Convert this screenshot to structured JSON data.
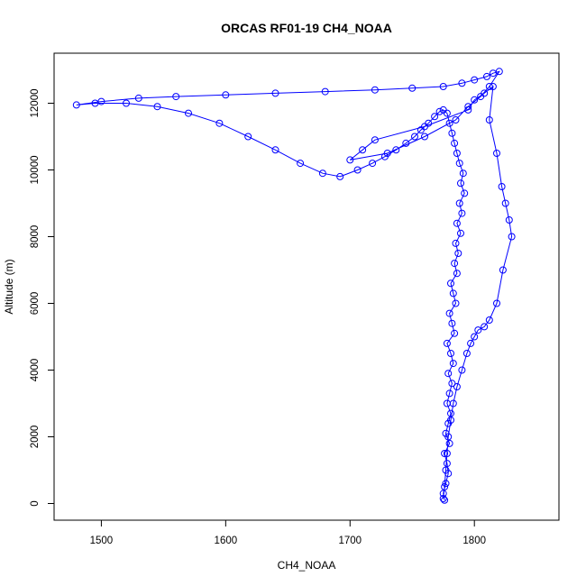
{
  "chart_data": {
    "type": "scatter",
    "title": "ORCAS RF01-19 CH4_NOAA",
    "xlabel": "CH4_NOAA",
    "ylabel": "Altitude (m)",
    "xlim": [
      1462,
      1868
    ],
    "ylim": [
      -500,
      13500
    ],
    "x_ticks": [
      1500,
      1600,
      1700,
      1800
    ],
    "y_ticks": [
      0,
      2000,
      4000,
      6000,
      8000,
      10000,
      12000
    ],
    "grid": false,
    "legend": "none",
    "marker": "open-circle",
    "connected": true,
    "color": "#0000ff",
    "series": [
      {
        "name": "",
        "x": [
          1776,
          1775,
          1777,
          1779,
          1778,
          1776,
          1780,
          1777,
          1779,
          1781,
          1778,
          1780,
          1782,
          1779,
          1783,
          1781,
          1778,
          1784,
          1782,
          1780,
          1785,
          1783,
          1781,
          1786,
          1784,
          1787,
          1785,
          1789,
          1786,
          1790,
          1788,
          1792,
          1789,
          1791,
          1788,
          1786,
          1784,
          1782,
          1780,
          1778,
          1775,
          1772,
          1768,
          1763,
          1757,
          1752,
          1745,
          1737,
          1728,
          1718,
          1706,
          1692,
          1678,
          1660,
          1640,
          1618,
          1595,
          1570,
          1545,
          1520,
          1495,
          1480,
          1500,
          1530,
          1560,
          1600,
          1640,
          1680,
          1720,
          1750,
          1775,
          1790,
          1800,
          1810,
          1815,
          1820,
          1812,
          1805,
          1795,
          1785,
          1760,
          1730,
          1700,
          1710,
          1720,
          1760,
          1795,
          1800,
          1808,
          1815,
          1812,
          1818,
          1822,
          1825,
          1828,
          1830,
          1823,
          1818,
          1812,
          1808,
          1803,
          1800,
          1797,
          1794,
          1790,
          1786,
          1783,
          1781,
          1779,
          1778,
          1777,
          1776,
          1775
        ],
        "y": [
          100,
          300,
          600,
          900,
          1200,
          1500,
          1800,
          2100,
          2400,
          2700,
          3000,
          3300,
          3600,
          3900,
          4200,
          4500,
          4800,
          5100,
          5400,
          5700,
          6000,
          6300,
          6600,
          6900,
          7200,
          7500,
          7800,
          8100,
          8400,
          8700,
          9000,
          9300,
          9600,
          9900,
          10200,
          10500,
          10800,
          11100,
          11400,
          11700,
          11800,
          11750,
          11600,
          11400,
          11200,
          11000,
          10800,
          10600,
          10400,
          10200,
          10000,
          9800,
          9900,
          10200,
          10600,
          11000,
          11400,
          11700,
          11900,
          12000,
          12000,
          11950,
          12050,
          12150,
          12200,
          12250,
          12300,
          12350,
          12400,
          12450,
          12500,
          12600,
          12700,
          12800,
          12900,
          12950,
          12500,
          12200,
          11900,
          11500,
          11000,
          10500,
          10300,
          10600,
          10900,
          11300,
          11800,
          12100,
          12300,
          12500,
          11500,
          10500,
          9500,
          9000,
          8500,
          8000,
          7000,
          6000,
          5500,
          5300,
          5200,
          5000,
          4800,
          4500,
          4000,
          3500,
          3000,
          2500,
          2000,
          1500,
          1000,
          500,
          150
        ]
      }
    ]
  }
}
